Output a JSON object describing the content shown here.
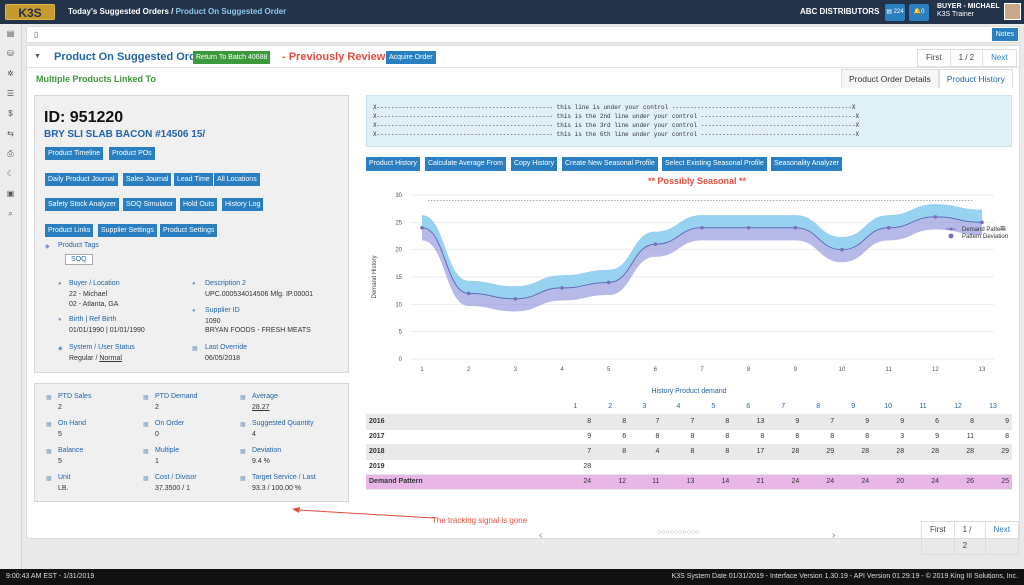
{
  "header": {
    "logo": "K3S",
    "crumb1": "Today's Suggested Orders",
    "crumb_sep": "/",
    "crumb2": "Product On Suggested Order",
    "distributor": "ABC DISTRIBUTORS",
    "badge": "224",
    "badge2": "0",
    "user_name": "BUYER - MICHAEL",
    "user_role": "K3S Trainer"
  },
  "toolbar": {
    "notes": "Notes"
  },
  "page": {
    "title": "Product On Suggested Order",
    "return_btn": "Return To Batch 40688",
    "reviewed": "- Previously Reviewed",
    "acquire_btn": "Acquire Order",
    "pager": {
      "first": "First",
      "page": "1 / 2",
      "next": "Next"
    },
    "linked": "Multiple Products Linked To",
    "tabs": [
      "Product Order Details",
      "Product History"
    ]
  },
  "product": {
    "id": "ID: 951220",
    "name": "BRY SLI SLAB BACON #14506 15/",
    "buttons_row1": [
      "Product Timeline",
      "Product POs"
    ],
    "buttons_row2": [
      "Daily Product Journal",
      "Sales Journal",
      "Lead Time",
      "All Locations"
    ],
    "buttons_row3": [
      "Safety Stock Analyzer",
      "SOQ Simulator",
      "Hold Outs",
      "History Log"
    ],
    "buttons_row4": [
      "Product Links",
      "Supplier Settings",
      "Product Settings"
    ],
    "tags_label": "Product Tags",
    "tag": "SOQ",
    "buyer_label": "Buyer / Location",
    "buyer_v1": "22 - Michael",
    "buyer_v2": "02 - Atlanta, GA",
    "desc_label": "Description 2",
    "desc_v": "UPC.000534014506 Mfg. IP.00001",
    "birth_label": "Birth | Ref Birth",
    "birth_v": "01/01/1990 | 01/01/1990",
    "supplier_label": "Supplier ID",
    "supplier_v1": "1090",
    "supplier_v2": "BRYAN FOODS - FRESH MEATS",
    "sys_label": "System / User Status",
    "sys_v1": "Regular /",
    "sys_v2": "Normal",
    "override_label": "Last Override",
    "override_v": "06/05/2018"
  },
  "metrics": [
    {
      "label": "PTD Sales",
      "value": "2"
    },
    {
      "label": "PTD Demand",
      "value": "2"
    },
    {
      "label": "Average",
      "value": "28.27"
    },
    {
      "label": "On Hand",
      "value": "5"
    },
    {
      "label": "On Order",
      "value": "0"
    },
    {
      "label": "Suggested Quantity",
      "value": "4"
    },
    {
      "label": "Balance",
      "value": "5"
    },
    {
      "label": "Multiple",
      "value": "1"
    },
    {
      "label": "Deviation",
      "value": "9.4 %"
    },
    {
      "label": "Unit",
      "value": "LB."
    },
    {
      "label": "Cost / Divisor",
      "value": "37.3500 / 1"
    },
    {
      "label": "Target Service / Last",
      "value": "93.3 / 100.00 %"
    }
  ],
  "control_lines": [
    "X------------------------------------------------- this line is under your control --------------------------------------------------X",
    "X------------------------------------------------- this is the 2nd line under your control -------------------------------------------X",
    "X------------------------------------------------- this is the 3rd line under your control -------------------------------------------X",
    "X------------------------------------------------- this is the 6th line under your control -------------------------------------------X"
  ],
  "chart_buttons": [
    "Product History",
    "Calculate Average From",
    "Copy History",
    "Create New Seasonal Profile",
    "Select Existing Seasonal Profile",
    "Seasonality Analyzer"
  ],
  "chart_data": {
    "type": "line",
    "title": "** Possibly Seasonal **",
    "ylabel": "Demand History",
    "x": [
      1,
      2,
      3,
      4,
      5,
      6,
      7,
      8,
      9,
      10,
      11,
      12,
      13
    ],
    "ylim": [
      0,
      30
    ],
    "yticks": [
      0,
      5,
      10,
      15,
      20,
      25,
      30
    ],
    "series": [
      {
        "name": "Demand Pattern",
        "values": [
          24,
          12,
          11,
          13,
          14,
          21,
          24,
          24,
          24,
          20,
          24,
          26,
          25
        ]
      }
    ],
    "deviation_legend": "Pattern Deviation",
    "grid": true,
    "legend": "top-right"
  },
  "history_table": {
    "title": "History Product demand",
    "columns": [
      "1",
      "2",
      "3",
      "4",
      "5",
      "6",
      "7",
      "8",
      "9",
      "10",
      "11",
      "12",
      "13"
    ],
    "rows": [
      {
        "label": "2016",
        "values": [
          "8",
          "8",
          "7",
          "7",
          "8",
          "13",
          "9",
          "7",
          "9",
          "9",
          "6",
          "8",
          "9"
        ]
      },
      {
        "label": "2017",
        "values": [
          "9",
          "6",
          "8",
          "8",
          "8",
          "8",
          "8",
          "8",
          "8",
          "3",
          "9",
          "11",
          "8"
        ]
      },
      {
        "label": "2018",
        "values": [
          "7",
          "8",
          "4",
          "8",
          "8",
          "17",
          "28",
          "29",
          "28",
          "28",
          "28",
          "28",
          "29"
        ]
      },
      {
        "label": "2019",
        "values": [
          "28",
          "",
          "",
          "",
          "",
          "",
          "",
          "",
          "",
          "",
          "",
          "",
          ""
        ]
      },
      {
        "label": "Demand Pattern",
        "values": [
          "24",
          "12",
          "11",
          "13",
          "14",
          "21",
          "24",
          "24",
          "24",
          "20",
          "24",
          "26",
          "25"
        ]
      }
    ]
  },
  "annotation": "The tracking signal is gone",
  "bottom_pager": {
    "first": "First",
    "page": "1 / 2",
    "next": "Next"
  },
  "status": {
    "left": "9:00:43 AM EST - 1/31/2019",
    "right": "K3S System Date 01/31/2019 - Interface Version 1.30.19 - API Version 01.29.19 - © 2019 King III Solutions, Inc."
  }
}
